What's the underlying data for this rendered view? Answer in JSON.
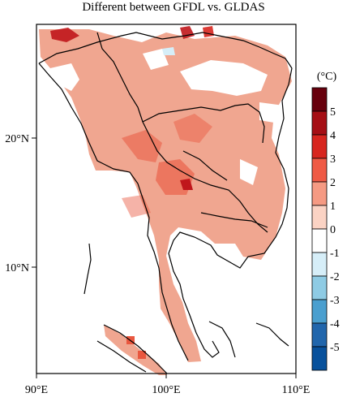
{
  "title": "Different between GFDL vs. GLDAS",
  "map": {
    "lon_ticks": [
      "90°E",
      "100°E",
      "110°E"
    ],
    "lat_ticks": [
      "20°N",
      "10°N"
    ]
  },
  "colorbar": {
    "unit_label": "(°C)",
    "levels": [
      {
        "label": "5",
        "color": "#67000d"
      },
      {
        "label": "4",
        "color": "#a50f15"
      },
      {
        "label": "3",
        "color": "#d7261f"
      },
      {
        "label": "2",
        "color": "#ef5a45"
      },
      {
        "label": "1",
        "color": "#f59a83"
      },
      {
        "label": "0",
        "color": "#fbd3c4"
      },
      {
        "label": "-1",
        "color": "#ffffff"
      },
      {
        "label": "-2",
        "color": "#d6eef8"
      },
      {
        "label": "-3",
        "color": "#8ecbe4"
      },
      {
        "label": "-4",
        "color": "#4a9fcf"
      },
      {
        "label": "-5",
        "color": "#2166ac"
      },
      {
        "label": "",
        "color": "#08519c"
      }
    ]
  },
  "colors": {
    "warm_fill": "#f0a690",
    "strong_fill": "#e9573f",
    "max_fill": "#c0161b",
    "cool_fill": "#d6eef8",
    "border": "#000000"
  }
}
